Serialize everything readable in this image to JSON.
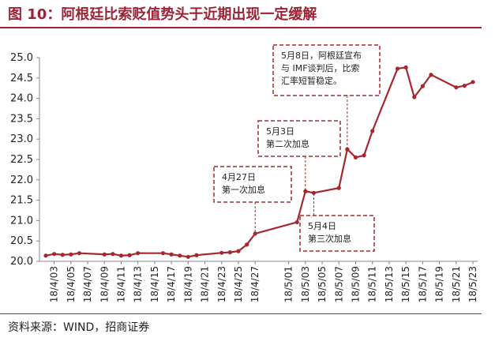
{
  "title": "图 10：阿根廷比索贬值势头于近期出现一定缓解",
  "source": "资料来源：WIND，招商证券",
  "colors": {
    "line": "#a6282f",
    "accent": "#9b2335",
    "callout_border": "#a6282f"
  },
  "chart_data": {
    "type": "line",
    "xlabel": "",
    "ylabel": "",
    "ylim": [
      20.0,
      25.0
    ],
    "yticks": [
      "20.0",
      "20.5",
      "21.0",
      "21.5",
      "22.0",
      "22.5",
      "23.0",
      "23.5",
      "24.0",
      "24.5",
      "25.0"
    ],
    "xticks": [
      "18/4/03",
      "18/4/05",
      "18/4/07",
      "18/4/09",
      "18/4/11",
      "18/4/13",
      "18/4/15",
      "18/4/17",
      "18/4/19",
      "18/4/21",
      "18/4/23",
      "18/4/25",
      "18/4/27",
      "18/5/01",
      "18/5/03",
      "18/5/05",
      "18/5/07",
      "18/5/09",
      "18/5/11",
      "18/5/13",
      "18/5/15",
      "18/5/17",
      "18/5/19",
      "18/5/21",
      "18/5/23"
    ],
    "grid": false,
    "legend": "none",
    "series": [
      {
        "points": [
          [
            "18/4/02",
            20.14
          ],
          [
            "18/4/03",
            20.18
          ],
          [
            "18/4/04",
            20.16
          ],
          [
            "18/4/05",
            20.17
          ],
          [
            "18/4/06",
            20.2
          ],
          [
            "18/4/09",
            20.17
          ],
          [
            "18/4/10",
            20.18
          ],
          [
            "18/4/11",
            20.14
          ],
          [
            "18/4/12",
            20.15
          ],
          [
            "18/4/13",
            20.2
          ],
          [
            "18/4/16",
            20.2
          ],
          [
            "18/4/17",
            20.17
          ],
          [
            "18/4/18",
            20.14
          ],
          [
            "18/4/19",
            20.11
          ],
          [
            "18/4/20",
            20.15
          ],
          [
            "18/4/23",
            20.21
          ],
          [
            "18/4/24",
            20.22
          ],
          [
            "18/4/25",
            20.25
          ],
          [
            "18/4/26",
            20.41
          ],
          [
            "18/4/27",
            20.68
          ],
          [
            "18/5/02",
            20.96
          ],
          [
            "18/5/03",
            21.72
          ],
          [
            "18/5/04",
            21.68
          ],
          [
            "18/5/07",
            21.8
          ],
          [
            "18/5/08",
            22.75
          ],
          [
            "18/5/09",
            22.55
          ],
          [
            "18/5/10",
            22.6
          ],
          [
            "18/5/11",
            23.2
          ],
          [
            "18/5/14",
            24.73
          ],
          [
            "18/5/15",
            24.76
          ],
          [
            "18/5/16",
            24.03
          ],
          [
            "18/5/17",
            24.3
          ],
          [
            "18/5/18",
            24.58
          ],
          [
            "18/5/21",
            24.27
          ],
          [
            "18/5/22",
            24.31
          ],
          [
            "18/5/23",
            24.4
          ]
        ]
      }
    ],
    "annotations": [
      {
        "lines": [
          "5月8日，阿根廷宣布",
          "与 IMF谈判后，比索",
          "汇率短暂稳定。"
        ],
        "target": "18/5/08"
      },
      {
        "lines": [
          "5月3日",
          "第二次加息"
        ],
        "target": "18/5/03"
      },
      {
        "lines": [
          "4月27日",
          "第一次加息"
        ],
        "target": "18/4/27"
      },
      {
        "lines": [
          "5月4日",
          "第三次加息"
        ],
        "target": "18/5/04"
      }
    ]
  }
}
